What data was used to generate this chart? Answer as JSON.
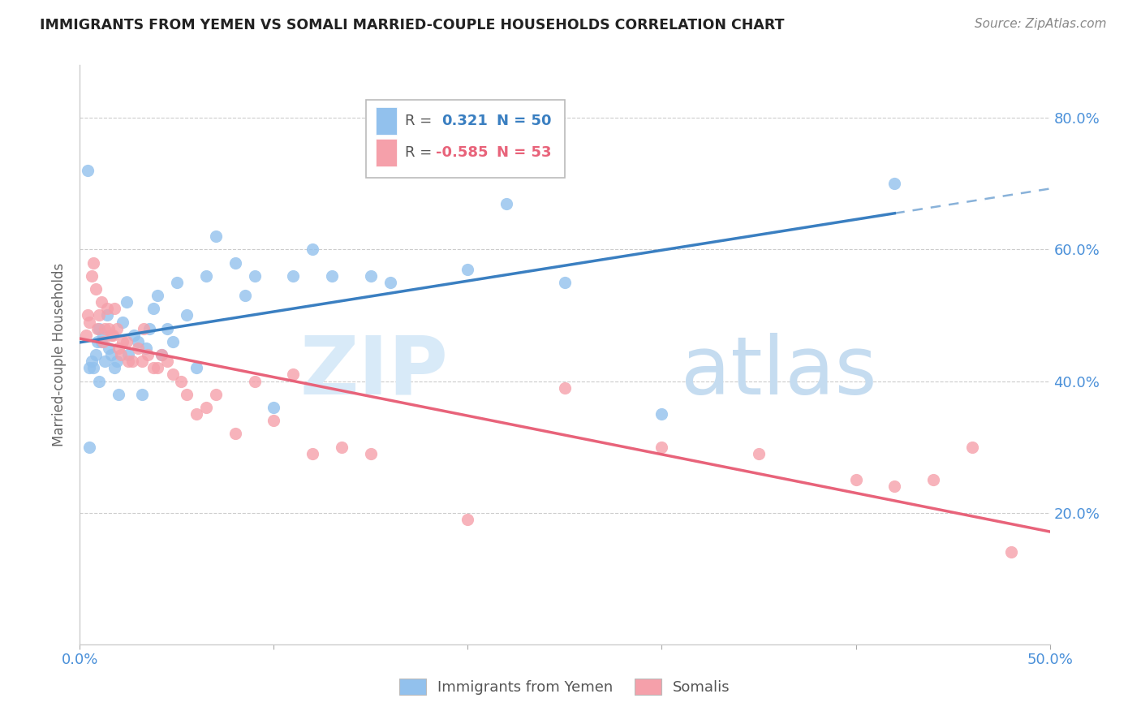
{
  "title": "IMMIGRANTS FROM YEMEN VS SOMALI MARRIED-COUPLE HOUSEHOLDS CORRELATION CHART",
  "source": "Source: ZipAtlas.com",
  "ylabel": "Married-couple Households",
  "legend_label1": "Immigrants from Yemen",
  "legend_label2": "Somalis",
  "R1": 0.321,
  "N1": 50,
  "R2": -0.585,
  "N2": 53,
  "blue_color": "#92C1ED",
  "pink_color": "#F5A0AA",
  "blue_line_color": "#3A7FC1",
  "pink_line_color": "#E8637A",
  "xlim": [
    0.0,
    0.5
  ],
  "ylim": [
    0.0,
    0.88
  ],
  "blue_scatter_x": [
    0.004,
    0.005,
    0.005,
    0.006,
    0.007,
    0.008,
    0.009,
    0.01,
    0.01,
    0.011,
    0.012,
    0.013,
    0.014,
    0.015,
    0.016,
    0.018,
    0.019,
    0.02,
    0.022,
    0.024,
    0.025,
    0.028,
    0.03,
    0.032,
    0.034,
    0.036,
    0.038,
    0.04,
    0.042,
    0.045,
    0.048,
    0.05,
    0.055,
    0.06,
    0.065,
    0.07,
    0.08,
    0.085,
    0.09,
    0.1,
    0.11,
    0.12,
    0.13,
    0.15,
    0.16,
    0.2,
    0.22,
    0.25,
    0.3,
    0.42
  ],
  "blue_scatter_y": [
    0.72,
    0.3,
    0.42,
    0.43,
    0.42,
    0.44,
    0.46,
    0.4,
    0.48,
    0.46,
    0.47,
    0.43,
    0.5,
    0.45,
    0.44,
    0.42,
    0.43,
    0.38,
    0.49,
    0.52,
    0.44,
    0.47,
    0.46,
    0.38,
    0.45,
    0.48,
    0.51,
    0.53,
    0.44,
    0.48,
    0.46,
    0.55,
    0.5,
    0.42,
    0.56,
    0.62,
    0.58,
    0.53,
    0.56,
    0.36,
    0.56,
    0.6,
    0.56,
    0.56,
    0.55,
    0.57,
    0.67,
    0.55,
    0.35,
    0.7
  ],
  "pink_scatter_x": [
    0.003,
    0.004,
    0.005,
    0.006,
    0.007,
    0.008,
    0.009,
    0.01,
    0.011,
    0.012,
    0.013,
    0.014,
    0.015,
    0.016,
    0.017,
    0.018,
    0.019,
    0.02,
    0.021,
    0.022,
    0.024,
    0.025,
    0.027,
    0.03,
    0.032,
    0.033,
    0.035,
    0.038,
    0.04,
    0.042,
    0.045,
    0.048,
    0.052,
    0.055,
    0.06,
    0.065,
    0.07,
    0.08,
    0.09,
    0.1,
    0.11,
    0.12,
    0.135,
    0.15,
    0.2,
    0.25,
    0.3,
    0.35,
    0.4,
    0.42,
    0.44,
    0.46,
    0.48
  ],
  "pink_scatter_y": [
    0.47,
    0.5,
    0.49,
    0.56,
    0.58,
    0.54,
    0.48,
    0.5,
    0.52,
    0.46,
    0.48,
    0.51,
    0.48,
    0.47,
    0.47,
    0.51,
    0.48,
    0.45,
    0.44,
    0.46,
    0.46,
    0.43,
    0.43,
    0.45,
    0.43,
    0.48,
    0.44,
    0.42,
    0.42,
    0.44,
    0.43,
    0.41,
    0.4,
    0.38,
    0.35,
    0.36,
    0.38,
    0.32,
    0.4,
    0.34,
    0.41,
    0.29,
    0.3,
    0.29,
    0.19,
    0.39,
    0.3,
    0.29,
    0.25,
    0.24,
    0.25,
    0.3,
    0.14
  ],
  "grid_color": "#CCCCCC",
  "background_color": "#FFFFFF",
  "yticks": [
    0.2,
    0.4,
    0.6,
    0.8
  ],
  "ytick_labels": [
    "20.0%",
    "40.0%",
    "60.0%",
    "80.0%"
  ],
  "xticks": [
    0.0,
    0.1,
    0.2,
    0.3,
    0.4,
    0.5
  ],
  "xtick_labels": [
    "0.0%",
    "",
    "",
    "",
    "",
    "50.0%"
  ]
}
